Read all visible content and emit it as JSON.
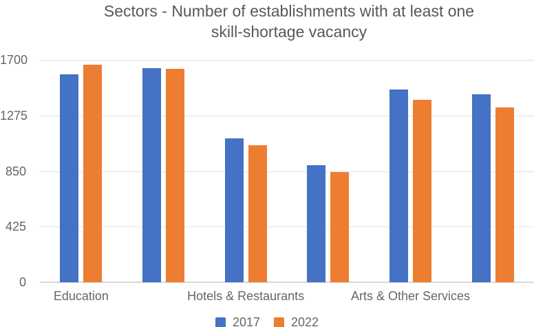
{
  "chart_data": {
    "type": "bar",
    "title": "Sectors - Number of establishments with at least one\nskill-shortage vacancy",
    "categories": [
      "Education",
      "",
      "Hotels & Restaurants",
      "",
      "Arts & Other Services",
      ""
    ],
    "series": [
      {
        "name": "2017",
        "color": "#4472c4",
        "values": [
          1590,
          1635,
          1100,
          895,
          1475,
          1435
        ]
      },
      {
        "name": "2022",
        "color": "#ed7d31",
        "values": [
          1665,
          1630,
          1050,
          840,
          1395,
          1335
        ]
      }
    ],
    "yticks": [
      0,
      425,
      850,
      1275,
      1700
    ],
    "ylim": [
      0,
      1700
    ],
    "xlabel": "",
    "ylabel": "",
    "grid": "horizontal",
    "legend_position": "bottom",
    "palette": {
      "title_text": "#58585a",
      "axis_text": "#666666",
      "gridline": "#e3e3e3",
      "axis_line": "#d6d6d6",
      "background": "#ffffff"
    }
  }
}
